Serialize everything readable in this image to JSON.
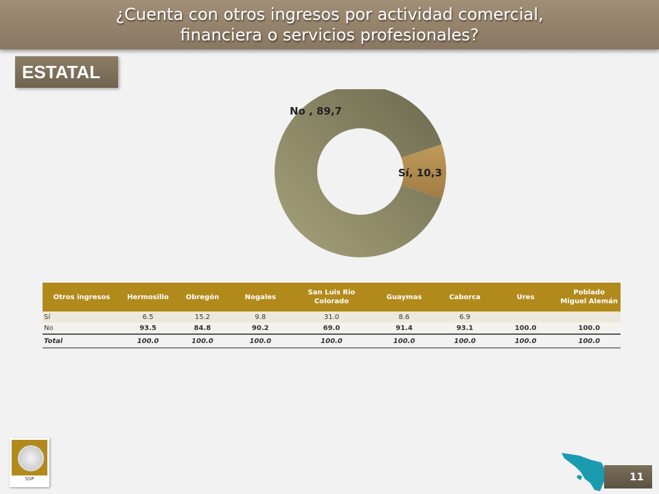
{
  "header": {
    "title_line1": "¿Cuenta con otros ingresos por actividad comercial,",
    "title_line2": "financiera o servicios profesionales?"
  },
  "badge": "ESTATAL",
  "chart_data": {
    "type": "pie",
    "donut": true,
    "slices": [
      {
        "label": "No",
        "value": 89.7,
        "display": "No , 89,7",
        "color": "#8b8866"
      },
      {
        "label": "Sí",
        "value": 10.3,
        "display": "Sí, 10,3",
        "color": "#b08a4e"
      }
    ]
  },
  "table": {
    "columns": [
      "Otros ingresos",
      "Hermosillo",
      "Obregón",
      "Nogales",
      "San Luis Rio Colorado",
      "Guaymas",
      "Caborca",
      "Ures",
      "Poblado Miguel Alemán"
    ],
    "rows": [
      [
        "Sí",
        "6.5",
        "15.2",
        "9.8",
        "31.0",
        "8.6",
        "6.9",
        "",
        ""
      ],
      [
        "No",
        "93.5",
        "84.8",
        "90.2",
        "69.0",
        "91.4",
        "93.1",
        "100.0",
        "100.0"
      ],
      [
        "Total",
        "100.0",
        "100.0",
        "100.0",
        "100.0",
        "100.0",
        "100.0",
        "100.0",
        "100.0"
      ]
    ]
  },
  "footer": {
    "logo_text": "SSP",
    "page_number": "11"
  },
  "colors": {
    "title_bar": "#8a7761",
    "table_header": "#b28a1c",
    "map": "#1b9bb0"
  }
}
